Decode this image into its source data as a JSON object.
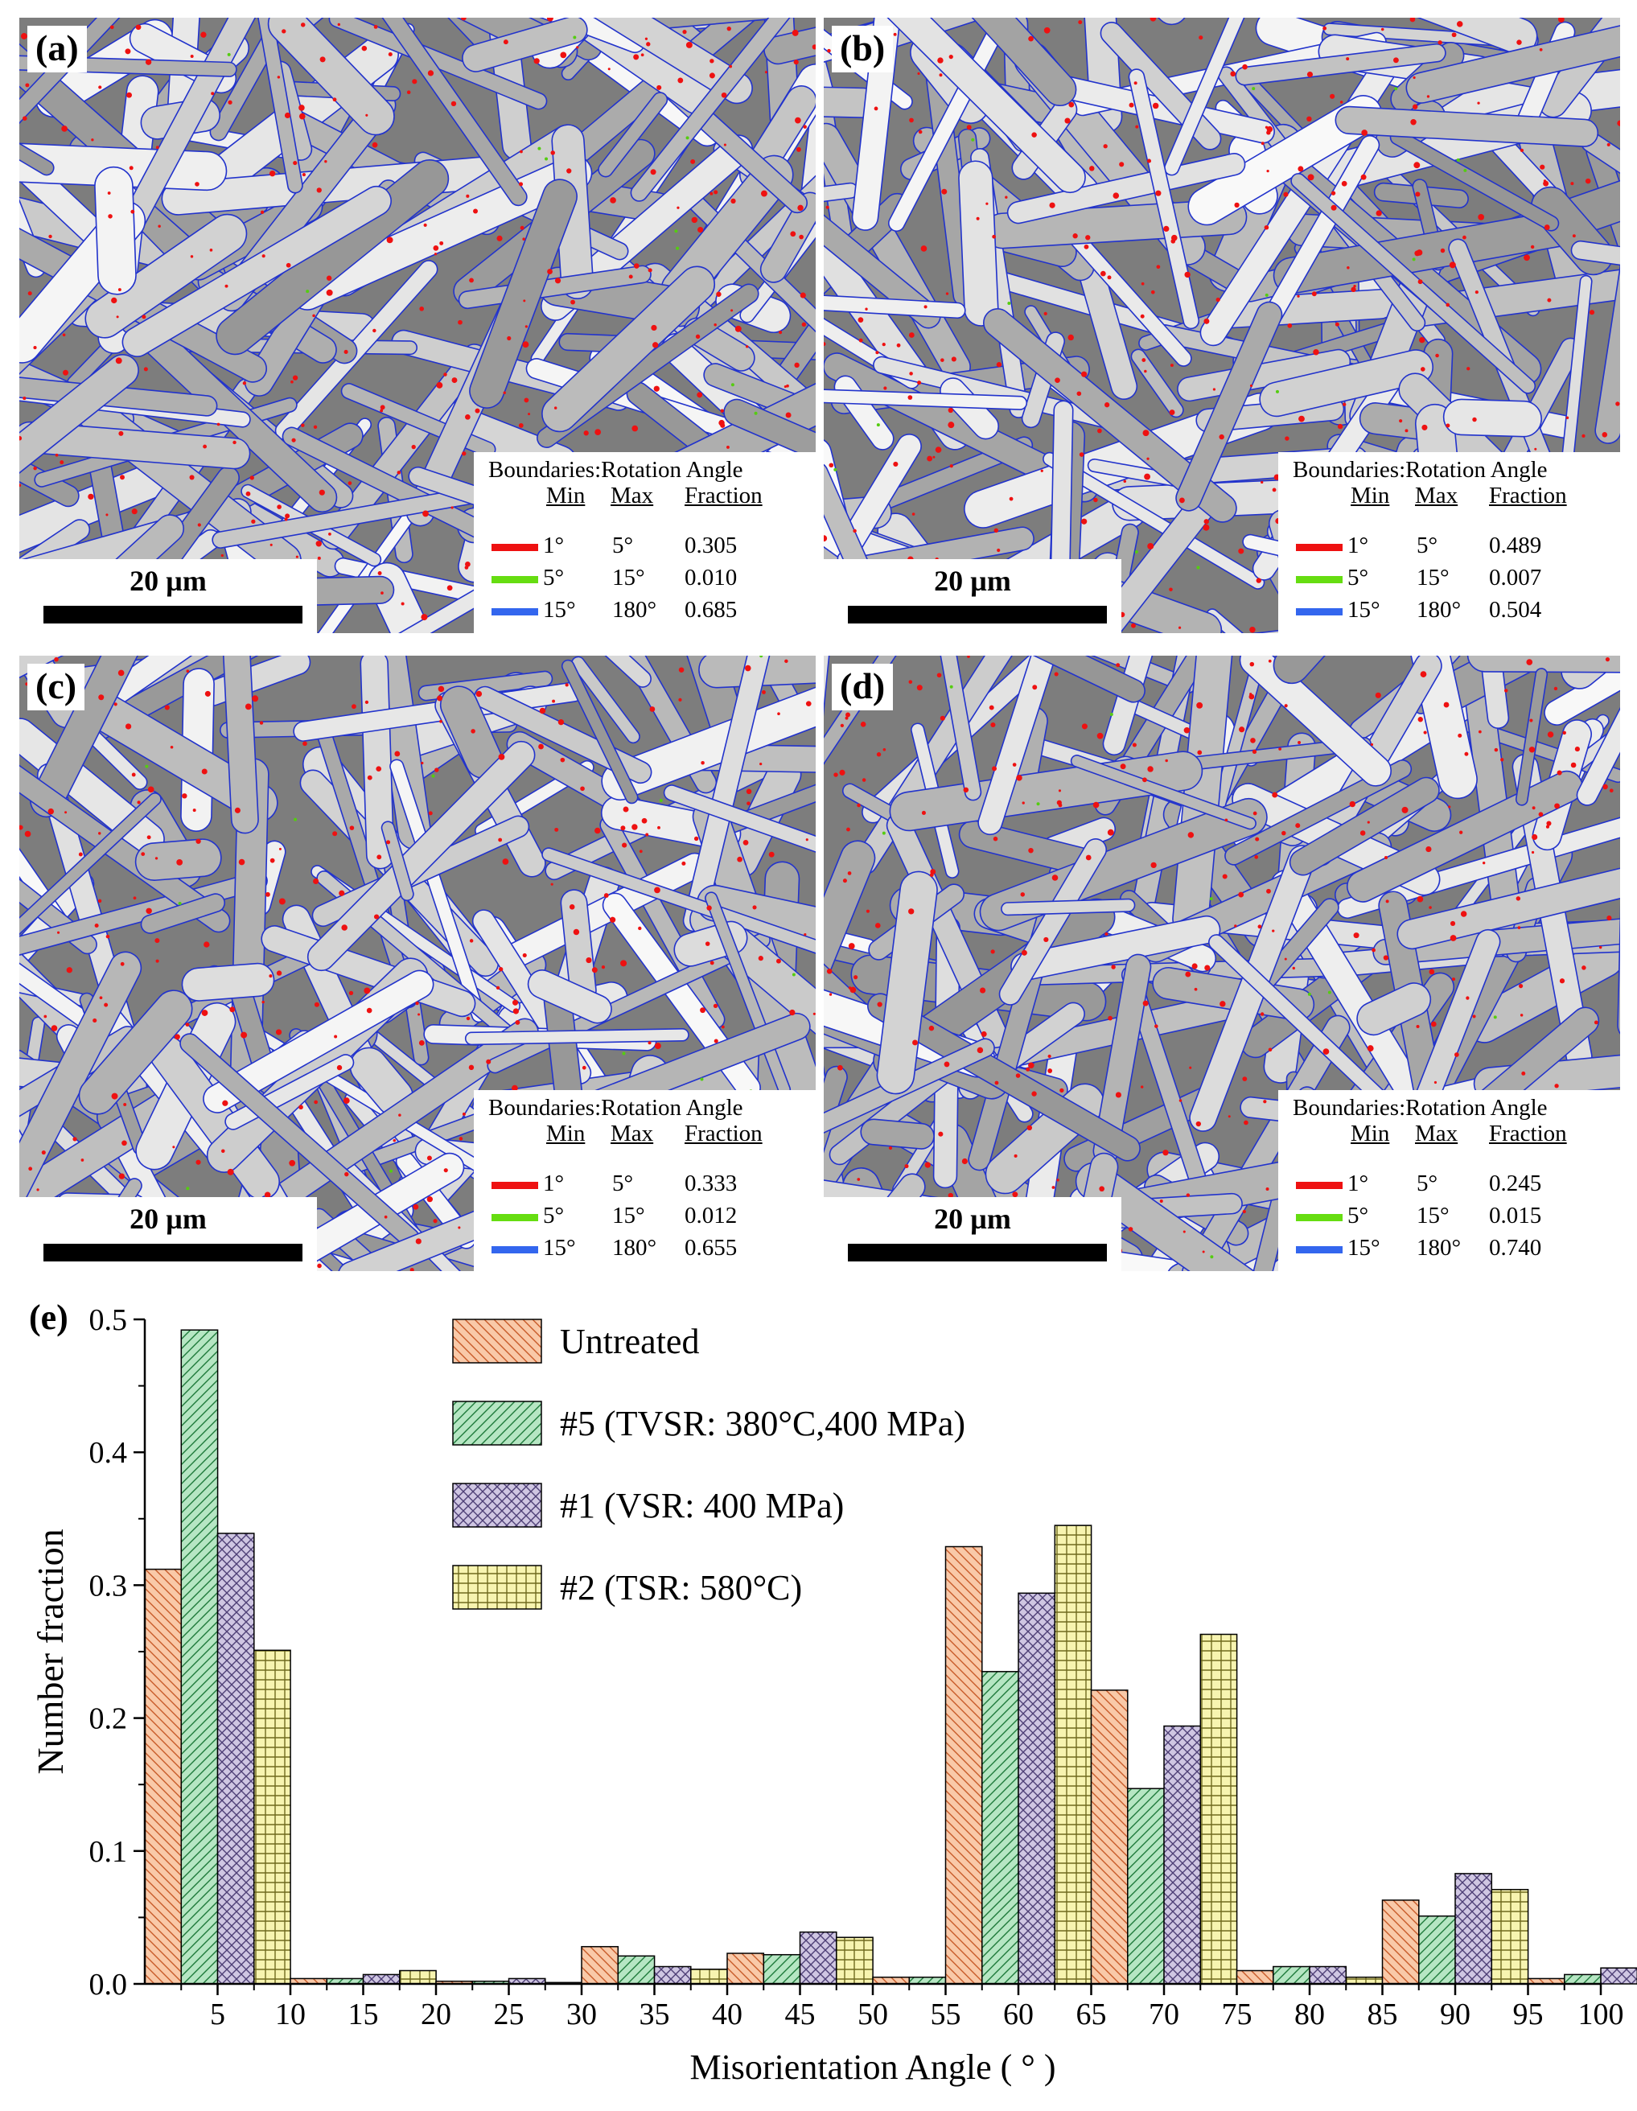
{
  "panels": [
    {
      "label": "(a)",
      "scale_text": "20 µm",
      "legend": {
        "title": "Boundaries:Rotation Angle",
        "col_min": "Min",
        "col_max": "Max",
        "col_fraction": "Fraction",
        "rows": [
          {
            "min": "1°",
            "max": "5°",
            "fraction": "0.305",
            "color": "#ee1111"
          },
          {
            "min": "5°",
            "max": "15°",
            "fraction": "0.010",
            "color": "#66dd11"
          },
          {
            "min": "15°",
            "max": "180°",
            "fraction": "0.685",
            "color": "#3366ee"
          }
        ]
      }
    },
    {
      "label": "(b)",
      "scale_text": "20 µm",
      "legend": {
        "title": "Boundaries:Rotation Angle",
        "col_min": "Min",
        "col_max": "Max",
        "col_fraction": "Fraction",
        "rows": [
          {
            "min": "1°",
            "max": "5°",
            "fraction": "0.489",
            "color": "#ee1111"
          },
          {
            "min": "5°",
            "max": "15°",
            "fraction": "0.007",
            "color": "#66dd11"
          },
          {
            "min": "15°",
            "max": "180°",
            "fraction": "0.504",
            "color": "#3366ee"
          }
        ]
      }
    },
    {
      "label": "(c)",
      "scale_text": "20 µm",
      "legend": {
        "title": "Boundaries:Rotation Angle",
        "col_min": "Min",
        "col_max": "Max",
        "col_fraction": "Fraction",
        "rows": [
          {
            "min": "1°",
            "max": "5°",
            "fraction": "0.333",
            "color": "#ee1111"
          },
          {
            "min": "5°",
            "max": "15°",
            "fraction": "0.012",
            "color": "#66dd11"
          },
          {
            "min": "15°",
            "max": "180°",
            "fraction": "0.655",
            "color": "#3366ee"
          }
        ]
      }
    },
    {
      "label": "(d)",
      "scale_text": "20 µm",
      "legend": {
        "title": "Boundaries:Rotation Angle",
        "col_min": "Min",
        "col_max": "Max",
        "col_fraction": "Fraction",
        "rows": [
          {
            "min": "1°",
            "max": "5°",
            "fraction": "0.245",
            "color": "#ee1111"
          },
          {
            "min": "5°",
            "max": "15°",
            "fraction": "0.015",
            "color": "#66dd11"
          },
          {
            "min": "15°",
            "max": "180°",
            "fraction": "0.740",
            "color": "#3366ee"
          }
        ]
      }
    }
  ],
  "chart_data": {
    "type": "bar",
    "panel_label": "(e)",
    "xlabel": "Misorientation Angle ( ° )",
    "ylabel": "Number fraction",
    "xlim": [
      0,
      100
    ],
    "ylim": [
      0,
      0.5
    ],
    "x_ticks": [
      5,
      10,
      15,
      20,
      25,
      30,
      35,
      40,
      45,
      50,
      55,
      60,
      65,
      70,
      75,
      80,
      85,
      90,
      95,
      100
    ],
    "y_ticks": [
      0.0,
      0.1,
      0.2,
      0.3,
      0.4,
      0.5
    ],
    "y_tick_labels": [
      "0.0",
      "0.1",
      "0.2",
      "0.3",
      "0.4",
      "0.5"
    ],
    "bin_edges": [
      0,
      10,
      20,
      30,
      40,
      50,
      55,
      65,
      75,
      85,
      95
    ],
    "bin_width": 10,
    "legend_position": "top-center",
    "series": [
      {
        "name": "Untreated",
        "color": "#f9c9a8",
        "edge": "#c85a28",
        "pattern": "diag-back",
        "values": [
          0.312,
          0.004,
          0.002,
          0.028,
          0.023,
          0.005,
          0.329,
          0.221,
          0.01,
          0.063,
          0.004
        ]
      },
      {
        "name": "#5 (TVSR: 380°C,400 MPa)",
        "color": "#b6e6c3",
        "edge": "#1e7a3a",
        "pattern": "diag-fwd",
        "values": [
          0.492,
          0.004,
          0.002,
          0.021,
          0.022,
          0.005,
          0.235,
          0.147,
          0.013,
          0.051,
          0.007
        ]
      },
      {
        "name": "#1 (VSR: 400 MPa)",
        "color": "#cfc6e2",
        "edge": "#4e3f76",
        "pattern": "cross",
        "values": [
          0.339,
          0.007,
          0.004,
          0.013,
          0.039,
          0.002,
          0.294,
          0.194,
          0.013,
          0.083,
          0.012
        ]
      },
      {
        "name": "#2 (TSR: 580°C)",
        "color": "#f7f4b0",
        "edge": "#6f6a1e",
        "pattern": "grid",
        "values": [
          0.251,
          0.01,
          0.001,
          0.011,
          0.035,
          0.003,
          0.345,
          0.263,
          0.005,
          0.071,
          0.004
        ]
      }
    ]
  }
}
